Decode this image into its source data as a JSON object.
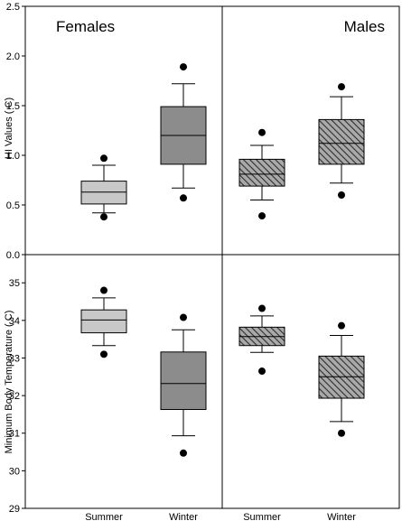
{
  "chart_data": {
    "type": "box",
    "categories": [
      "Summer",
      "Winter",
      "Summer",
      "Winter"
    ],
    "group_labels": [
      "Females",
      "Males"
    ],
    "panels": [
      {
        "ylabel": "HI Values ( C)",
        "ylim": [
          0.0,
          2.5
        ],
        "yticks": [
          "0.0",
          "0.5",
          "1.0",
          "1.5",
          "2.0",
          "2.5"
        ],
        "boxes": [
          {
            "group": "Females",
            "category": "Summer",
            "whisker_low": 0.42,
            "q1": 0.51,
            "median": 0.63,
            "q3": 0.74,
            "whisker_high": 0.9,
            "outliers": [
              0.38,
              0.97
            ],
            "style": "light"
          },
          {
            "group": "Females",
            "category": "Winter",
            "whisker_low": 0.67,
            "q1": 0.91,
            "median": 1.2,
            "q3": 1.49,
            "whisker_high": 1.72,
            "outliers": [
              0.57,
              1.89
            ],
            "style": "dark"
          },
          {
            "group": "Males",
            "category": "Summer",
            "whisker_low": 0.55,
            "q1": 0.69,
            "median": 0.81,
            "q3": 0.96,
            "whisker_high": 1.1,
            "outliers": [
              0.39,
              1.23
            ],
            "style": "hatched"
          },
          {
            "group": "Males",
            "category": "Winter",
            "whisker_low": 0.72,
            "q1": 0.91,
            "median": 1.12,
            "q3": 1.36,
            "whisker_high": 1.59,
            "outliers": [
              0.6,
              1.69
            ],
            "style": "hatched"
          }
        ]
      },
      {
        "ylabel": "Minimum Body Temperature ( C)",
        "ylim": [
          29,
          35.75
        ],
        "yticks": [
          "29",
          "30",
          "31",
          "32",
          "33",
          "34",
          "35"
        ],
        "boxes": [
          {
            "group": "Females",
            "category": "Summer",
            "whisker_low": 33.33,
            "q1": 33.67,
            "median": 34.01,
            "q3": 34.28,
            "whisker_high": 34.6,
            "outliers": [
              33.1,
              34.8
            ],
            "style": "light"
          },
          {
            "group": "Females",
            "category": "Winter",
            "whisker_low": 30.93,
            "q1": 31.63,
            "median": 32.32,
            "q3": 33.16,
            "whisker_high": 33.75,
            "outliers": [
              30.47,
              34.08
            ],
            "style": "dark"
          },
          {
            "group": "Males",
            "category": "Summer",
            "whisker_low": 33.15,
            "q1": 33.33,
            "median": 33.57,
            "q3": 33.82,
            "whisker_high": 34.12,
            "outliers": [
              32.65,
              34.32
            ],
            "style": "hatched"
          },
          {
            "group": "Males",
            "category": "Winter",
            "whisker_low": 31.31,
            "q1": 31.93,
            "median": 32.5,
            "q3": 33.05,
            "whisker_high": 33.6,
            "outliers": [
              31.0,
              33.86
            ],
            "style": "hatched"
          }
        ]
      }
    ]
  },
  "colors": {
    "light": "#c8c8c8",
    "dark": "#8c8c8c",
    "hatch_bg": "#a9a9a9",
    "hatch_line": "#2e2e2e",
    "ink": "#000000"
  }
}
